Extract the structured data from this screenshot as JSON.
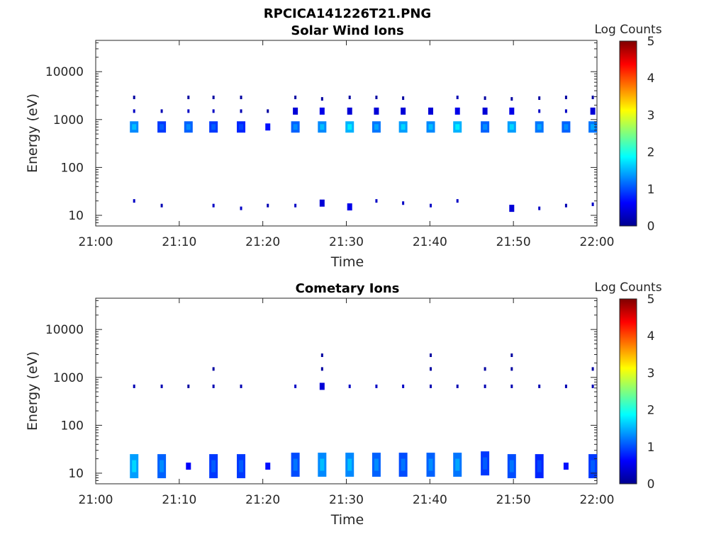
{
  "figure": {
    "main_title": "RPCICA141226T21.PNG"
  },
  "colors": {
    "axis": "#262626",
    "colormap": "jet",
    "colormap_stops": [
      "#00008f",
      "#0000ff",
      "#007fff",
      "#00ffff",
      "#7fff7f",
      "#ffff00",
      "#ff7f00",
      "#ff0000",
      "#7f0000"
    ]
  },
  "chart_data": [
    {
      "type": "heatmap",
      "title": "Solar Wind Ions",
      "xlabel": "Time",
      "ylabel": "Energy (eV)",
      "x_ticks": [
        "21:00",
        "21:10",
        "21:20",
        "21:30",
        "21:40",
        "21:50",
        "22:00"
      ],
      "x_range_min": [
        0,
        60
      ],
      "y_scale": "log",
      "y_ticks": [
        "10",
        "100",
        "1000",
        "10000"
      ],
      "y_range": [
        6,
        45000
      ],
      "colorbar": {
        "label": "Log Counts",
        "ticks": [
          "0",
          "1",
          "2",
          "3",
          "4",
          "5"
        ],
        "range": [
          0,
          5
        ]
      },
      "samples": [
        {
          "t": 4.6,
          "spots": [
            [
              700,
              1.3
            ],
            [
              1500,
              0.3
            ],
            [
              2900,
              0.1
            ],
            [
              20,
              0.3
            ]
          ]
        },
        {
          "t": 7.9,
          "spots": [
            [
              700,
              0.9
            ],
            [
              1500,
              0.2
            ],
            [
              16,
              0.2
            ]
          ]
        },
        {
          "t": 11.1,
          "spots": [
            [
              700,
              1.1
            ],
            [
              1500,
              0.3
            ],
            [
              2900,
              0.1
            ]
          ]
        },
        {
          "t": 14.1,
          "spots": [
            [
              700,
              0.9
            ],
            [
              1500,
              0.3
            ],
            [
              2900,
              0.1
            ],
            [
              16,
              0.3
            ]
          ]
        },
        {
          "t": 17.4,
          "spots": [
            [
              700,
              0.8
            ],
            [
              1500,
              0.2
            ],
            [
              2900,
              0.1
            ],
            [
              14,
              0.3
            ]
          ]
        },
        {
          "t": 20.6,
          "spots": [
            [
              700,
              0.7
            ],
            [
              1500,
              0.1
            ],
            [
              16,
              0.2
            ]
          ]
        },
        {
          "t": 23.9,
          "spots": [
            [
              700,
              1.1
            ],
            [
              1500,
              0.4
            ],
            [
              2900,
              0.1
            ],
            [
              16,
              0.3
            ]
          ]
        },
        {
          "t": 27.1,
          "spots": [
            [
              700,
              1.3
            ],
            [
              1500,
              0.5
            ],
            [
              2700,
              0.1
            ],
            [
              18,
              0.4
            ]
          ]
        },
        {
          "t": 30.4,
          "spots": [
            [
              700,
              1.5
            ],
            [
              1500,
              0.4
            ],
            [
              2900,
              0.1
            ],
            [
              15,
              0.5
            ]
          ]
        },
        {
          "t": 33.6,
          "spots": [
            [
              700,
              1.2
            ],
            [
              1500,
              0.4
            ],
            [
              2900,
              0.1
            ],
            [
              20,
              0.3
            ]
          ]
        },
        {
          "t": 36.8,
          "spots": [
            [
              700,
              1.4
            ],
            [
              1500,
              0.4
            ],
            [
              2800,
              0.1
            ],
            [
              18,
              0.3
            ]
          ]
        },
        {
          "t": 40.1,
          "spots": [
            [
              700,
              1.3
            ],
            [
              1500,
              0.4
            ],
            [
              16,
              0.3
            ]
          ]
        },
        {
          "t": 43.3,
          "spots": [
            [
              700,
              1.5
            ],
            [
              1500,
              0.5
            ],
            [
              2900,
              0.2
            ],
            [
              20,
              0.3
            ]
          ]
        },
        {
          "t": 46.6,
          "spots": [
            [
              700,
              1.1
            ],
            [
              1500,
              0.4
            ],
            [
              2800,
              0.1
            ]
          ]
        },
        {
          "t": 49.8,
          "spots": [
            [
              700,
              1.4
            ],
            [
              1500,
              0.5
            ],
            [
              2700,
              0.1
            ],
            [
              14,
              0.4
            ]
          ]
        },
        {
          "t": 53.1,
          "spots": [
            [
              700,
              1.2
            ],
            [
              1500,
              0.3
            ],
            [
              2800,
              0.1
            ],
            [
              14,
              0.3
            ]
          ]
        },
        {
          "t": 56.3,
          "spots": [
            [
              700,
              1.1
            ],
            [
              1500,
              0.3
            ],
            [
              2900,
              0.1
            ],
            [
              16,
              0.2
            ]
          ]
        },
        {
          "t": 59.5,
          "spots": [
            [
              700,
              1.2
            ],
            [
              1500,
              0.4
            ],
            [
              2900,
              0.1
            ],
            [
              17,
              0.3
            ]
          ]
        }
      ]
    },
    {
      "type": "heatmap",
      "title": "Cometary Ions",
      "xlabel": "Time",
      "ylabel": "Energy (eV)",
      "x_ticks": [
        "21:00",
        "21:10",
        "21:20",
        "21:30",
        "21:40",
        "21:50",
        "22:00"
      ],
      "x_range_min": [
        0,
        60
      ],
      "y_scale": "log",
      "y_ticks": [
        "10",
        "100",
        "1000",
        "10000"
      ],
      "y_range": [
        6,
        45000
      ],
      "colorbar": {
        "label": "Log Counts",
        "ticks": [
          "0",
          "1",
          "2",
          "3",
          "4",
          "5"
        ],
        "range": [
          0,
          5
        ]
      },
      "samples": [
        {
          "t": 4.6,
          "spots": [
            [
              14,
              1.4
            ],
            [
              650,
              0.2
            ]
          ]
        },
        {
          "t": 7.9,
          "spots": [
            [
              14,
              1.1
            ],
            [
              650,
              0.2
            ]
          ]
        },
        {
          "t": 11.1,
          "spots": [
            [
              14,
              0.6
            ],
            [
              650,
              0.1
            ]
          ]
        },
        {
          "t": 14.1,
          "spots": [
            [
              14,
              0.9
            ],
            [
              650,
              0.2
            ],
            [
              1500,
              0.1
            ]
          ]
        },
        {
          "t": 17.4,
          "spots": [
            [
              14,
              0.9
            ],
            [
              650,
              0.2
            ]
          ]
        },
        {
          "t": 20.6,
          "spots": [
            [
              14,
              0.7
            ]
          ]
        },
        {
          "t": 23.9,
          "spots": [
            [
              15,
              1.0
            ],
            [
              650,
              0.3
            ]
          ]
        },
        {
          "t": 27.1,
          "spots": [
            [
              15,
              1.3
            ],
            [
              650,
              0.4
            ],
            [
              2900,
              0.1
            ],
            [
              1500,
              0.1
            ]
          ]
        },
        {
          "t": 30.4,
          "spots": [
            [
              15,
              1.3
            ],
            [
              650,
              0.3
            ]
          ]
        },
        {
          "t": 33.6,
          "spots": [
            [
              15,
              1.1
            ],
            [
              650,
              0.3
            ]
          ]
        },
        {
          "t": 36.8,
          "spots": [
            [
              15,
              1.0
            ],
            [
              650,
              0.3
            ]
          ]
        },
        {
          "t": 40.1,
          "spots": [
            [
              15,
              1.1
            ],
            [
              650,
              0.2
            ],
            [
              2900,
              0.1
            ],
            [
              1500,
              0.1
            ]
          ]
        },
        {
          "t": 43.3,
          "spots": [
            [
              15,
              1.2
            ],
            [
              650,
              0.2
            ]
          ]
        },
        {
          "t": 46.6,
          "spots": [
            [
              16,
              0.9
            ],
            [
              650,
              0.2
            ],
            [
              1500,
              0.1
            ]
          ]
        },
        {
          "t": 49.8,
          "spots": [
            [
              14,
              1.0
            ],
            [
              650,
              0.2
            ],
            [
              2900,
              0.1
            ],
            [
              1500,
              0.1
            ]
          ]
        },
        {
          "t": 53.1,
          "spots": [
            [
              14,
              0.8
            ],
            [
              650,
              0.2
            ]
          ]
        },
        {
          "t": 56.3,
          "spots": [
            [
              14,
              0.7
            ],
            [
              650,
              0.2
            ]
          ]
        },
        {
          "t": 59.5,
          "spots": [
            [
              14,
              0.9
            ],
            [
              650,
              0.2
            ],
            [
              1500,
              0.1
            ]
          ]
        }
      ]
    }
  ]
}
